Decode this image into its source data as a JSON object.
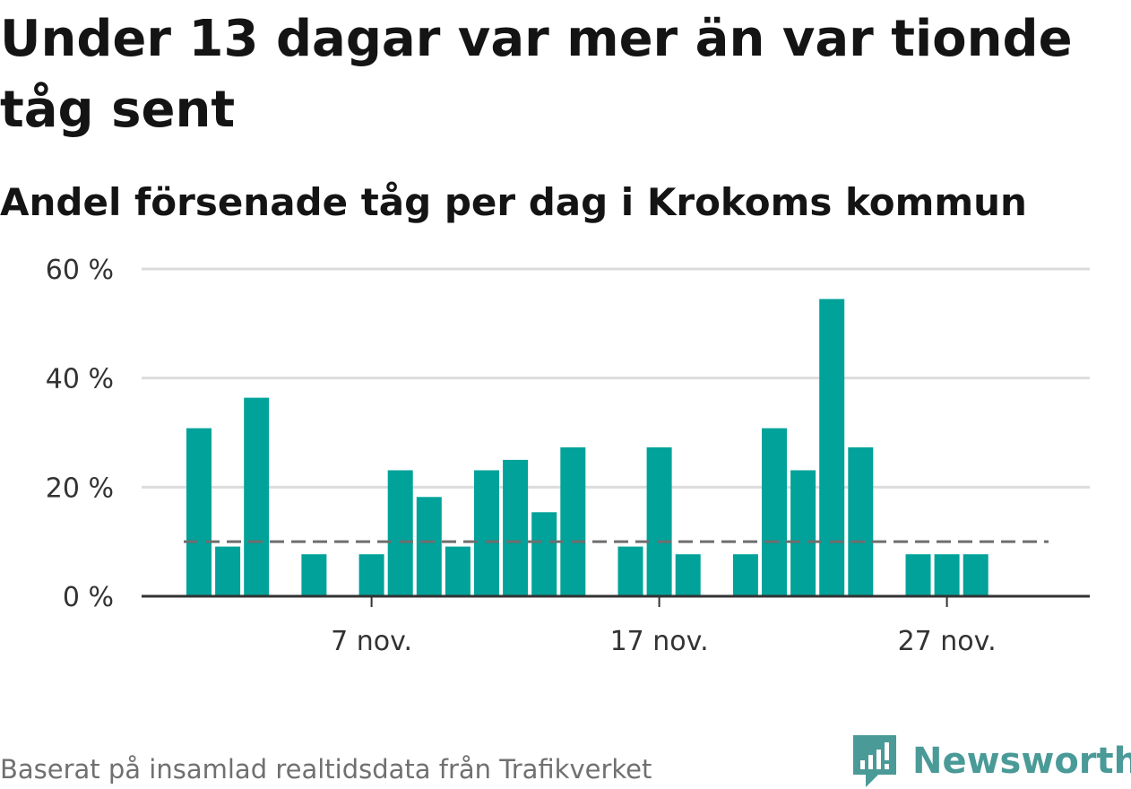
{
  "header": {
    "title": "Under 13 dagar var mer än var tionde tåg sent",
    "subtitle": "Andel försenade tåg per dag i Krokoms kommun"
  },
  "footer": {
    "source": "Baserat på insamlad realtidsdata från Trafikverket",
    "brand": "Newsworthy",
    "logo_icon": "newsworthy-logo-icon"
  },
  "colors": {
    "bar": "#00a29a",
    "reference_line": "#6e6e6e",
    "grid": "#dcdcdc",
    "axis": "#333333",
    "brand": "#4a9a98"
  },
  "chart_data": {
    "type": "bar",
    "categories": [
      "1 nov.",
      "2 nov.",
      "3 nov.",
      "4 nov.",
      "5 nov.",
      "6 nov.",
      "7 nov.",
      "8 nov.",
      "9 nov.",
      "10 nov.",
      "11 nov.",
      "12 nov.",
      "13 nov.",
      "14 nov.",
      "15 nov.",
      "16 nov.",
      "17 nov.",
      "18 nov.",
      "19 nov.",
      "20 nov.",
      "21 nov.",
      "22 nov.",
      "23 nov.",
      "24 nov.",
      "25 nov.",
      "26 nov.",
      "27 nov.",
      "28 nov.",
      "29 nov.",
      "30 nov."
    ],
    "values": [
      30.8,
      9.1,
      36.4,
      null,
      7.7,
      null,
      7.7,
      23.1,
      18.2,
      9.1,
      23.1,
      25.0,
      15.4,
      27.3,
      null,
      9.1,
      27.3,
      7.7,
      null,
      7.7,
      30.8,
      23.1,
      54.5,
      27.3,
      null,
      7.7,
      7.7,
      7.7,
      null,
      null
    ],
    "unit": "%",
    "reference_line": 10,
    "ylim": [
      0,
      60
    ],
    "yticks": [
      0,
      20,
      40,
      60
    ],
    "ytick_labels": [
      "0 %",
      "20 %",
      "40 %",
      "60 %"
    ],
    "xticks": [
      "7 nov.",
      "17 nov.",
      "27 nov."
    ],
    "grid": true,
    "legend": "none"
  }
}
